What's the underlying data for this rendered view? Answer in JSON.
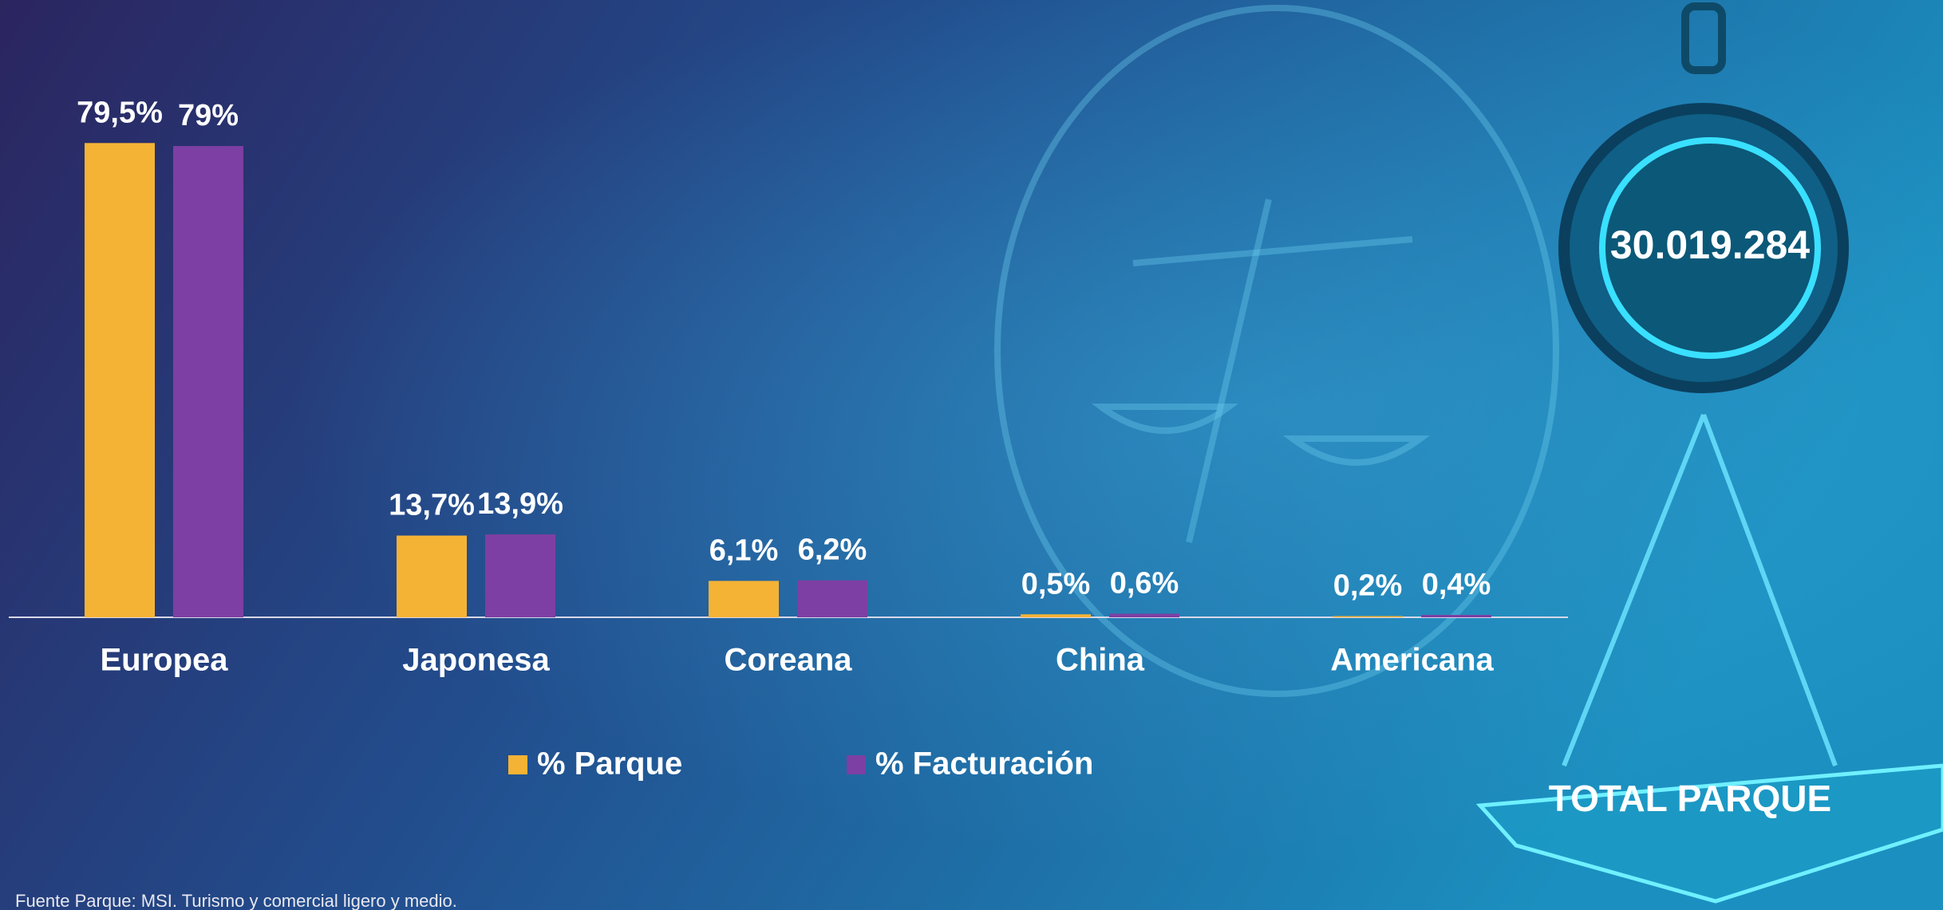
{
  "chart_data": {
    "type": "bar",
    "categories": [
      "Europea",
      "Japonesa",
      "Coreana",
      "China",
      "Americana"
    ],
    "series": [
      {
        "name": "% Parque",
        "color": "#f5b335",
        "values": [
          79.5,
          13.7,
          6.1,
          0.5,
          0.2
        ],
        "value_labels": [
          "79,5%",
          "13,7%",
          "6,1%",
          "0,5%",
          "0,2%"
        ]
      },
      {
        "name": "% Facturación",
        "color": "#7d3fa3",
        "values": [
          79,
          13.9,
          6.2,
          0.6,
          0.4
        ],
        "value_labels": [
          "79%",
          "13,9%",
          "6,2%",
          "0,6%",
          "0,4%"
        ]
      }
    ],
    "annotations": [
      "30.019.284",
      "TOTAL PARQUE"
    ],
    "source": "Fuente Parque: MSI. Turismo y comercial ligero y medio."
  }
}
